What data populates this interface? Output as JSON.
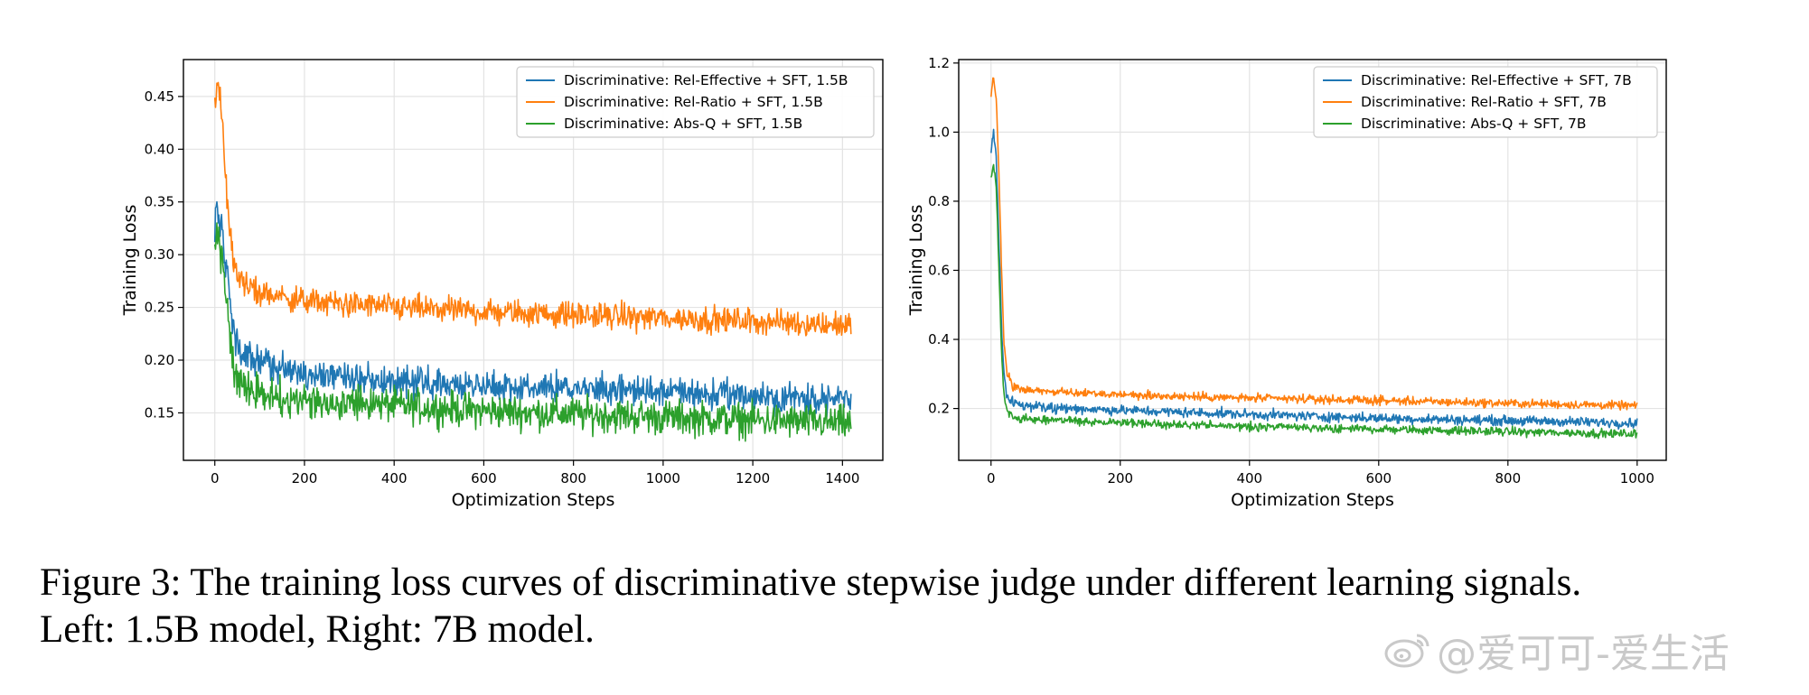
{
  "caption": {
    "line1": "Figure 3: The training loss curves of discriminative stepwise judge under different learning signals.",
    "line2": "Left: 1.5B model, Right: 7B model."
  },
  "watermark": {
    "text": "@爱可可-爱生活"
  },
  "colors": {
    "blue": "#1f77b4",
    "orange": "#ff7f0e",
    "green": "#2ca02c"
  },
  "chart_data": [
    {
      "type": "line",
      "xlabel": "Optimization Steps",
      "ylabel": "Training Loss",
      "xlim": [
        -70,
        1490
      ],
      "ylim": [
        0.105,
        0.485
      ],
      "xticks": [
        0,
        200,
        400,
        600,
        800,
        1000,
        1200,
        1400
      ],
      "yticks": [
        0.15,
        0.2,
        0.25,
        0.3,
        0.35,
        0.4,
        0.45
      ],
      "ytick_decimals": 2,
      "grid": true,
      "legend_position": "top-right",
      "series": [
        {
          "name": "Discriminative: Rel-Effective + SFT, 1.5B",
          "color": "#1f77b4",
          "anchors": [
            [
              0,
              0.33
            ],
            [
              5,
              0.35
            ],
            [
              15,
              0.32
            ],
            [
              25,
              0.29
            ],
            [
              35,
              0.25
            ],
            [
              45,
              0.22
            ],
            [
              60,
              0.205
            ],
            [
              100,
              0.197
            ],
            [
              200,
              0.188
            ],
            [
              400,
              0.18
            ],
            [
              600,
              0.176
            ],
            [
              800,
              0.173
            ],
            [
              1000,
              0.17
            ],
            [
              1200,
              0.166
            ],
            [
              1420,
              0.162
            ]
          ],
          "noise": 0.007
        },
        {
          "name": "Discriminative: Rel-Ratio + SFT, 1.5B",
          "color": "#ff7f0e",
          "anchors": [
            [
              0,
              0.44
            ],
            [
              5,
              0.465
            ],
            [
              12,
              0.45
            ],
            [
              20,
              0.4
            ],
            [
              30,
              0.34
            ],
            [
              40,
              0.3
            ],
            [
              50,
              0.28
            ],
            [
              70,
              0.27
            ],
            [
              120,
              0.262
            ],
            [
              200,
              0.256
            ],
            [
              400,
              0.25
            ],
            [
              600,
              0.246
            ],
            [
              800,
              0.243
            ],
            [
              1000,
              0.24
            ],
            [
              1200,
              0.237
            ],
            [
              1420,
              0.233
            ]
          ],
          "noise": 0.006
        },
        {
          "name": "Discriminative: Abs-Q + SFT, 1.5B",
          "color": "#2ca02c",
          "anchors": [
            [
              0,
              0.31
            ],
            [
              5,
              0.32
            ],
            [
              15,
              0.3
            ],
            [
              25,
              0.26
            ],
            [
              35,
              0.22
            ],
            [
              45,
              0.185
            ],
            [
              60,
              0.175
            ],
            [
              100,
              0.168
            ],
            [
              200,
              0.162
            ],
            [
              400,
              0.157
            ],
            [
              600,
              0.152
            ],
            [
              800,
              0.149
            ],
            [
              1000,
              0.146
            ],
            [
              1200,
              0.143
            ],
            [
              1420,
              0.14
            ]
          ],
          "noise": 0.008
        }
      ]
    },
    {
      "type": "line",
      "xlabel": "Optimization Steps",
      "ylabel": "Training Loss",
      "xlim": [
        -50,
        1045
      ],
      "ylim": [
        0.05,
        1.21
      ],
      "xticks": [
        0,
        200,
        400,
        600,
        800,
        1000
      ],
      "yticks": [
        0.2,
        0.4,
        0.6,
        0.8,
        1.0,
        1.2
      ],
      "ytick_decimals": 1,
      "grid": true,
      "legend_position": "top-right",
      "series": [
        {
          "name": "Discriminative: Rel-Effective + SFT, 7B",
          "color": "#1f77b4",
          "anchors": [
            [
              0,
              0.95
            ],
            [
              4,
              1.0
            ],
            [
              8,
              0.92
            ],
            [
              12,
              0.7
            ],
            [
              16,
              0.45
            ],
            [
              20,
              0.3
            ],
            [
              25,
              0.23
            ],
            [
              35,
              0.215
            ],
            [
              60,
              0.205
            ],
            [
              200,
              0.195
            ],
            [
              400,
              0.183
            ],
            [
              600,
              0.172
            ],
            [
              800,
              0.165
            ],
            [
              1000,
              0.158
            ]
          ],
          "noise": 0.007
        },
        {
          "name": "Discriminative: Rel-Ratio + SFT, 7B",
          "color": "#ff7f0e",
          "anchors": [
            [
              0,
              1.1
            ],
            [
              4,
              1.16
            ],
            [
              8,
              1.1
            ],
            [
              12,
              0.9
            ],
            [
              16,
              0.62
            ],
            [
              20,
              0.4
            ],
            [
              25,
              0.3
            ],
            [
              35,
              0.26
            ],
            [
              60,
              0.25
            ],
            [
              200,
              0.24
            ],
            [
              400,
              0.23
            ],
            [
              600,
              0.223
            ],
            [
              800,
              0.215
            ],
            [
              1000,
              0.208
            ]
          ],
          "noise": 0.006
        },
        {
          "name": "Discriminative: Abs-Q + SFT, 7B",
          "color": "#2ca02c",
          "anchors": [
            [
              0,
              0.86
            ],
            [
              4,
              0.91
            ],
            [
              8,
              0.85
            ],
            [
              12,
              0.62
            ],
            [
              16,
              0.38
            ],
            [
              20,
              0.24
            ],
            [
              25,
              0.19
            ],
            [
              35,
              0.175
            ],
            [
              60,
              0.168
            ],
            [
              200,
              0.158
            ],
            [
              400,
              0.148
            ],
            [
              600,
              0.14
            ],
            [
              800,
              0.133
            ],
            [
              1000,
              0.126
            ]
          ],
          "noise": 0.006
        }
      ]
    }
  ]
}
